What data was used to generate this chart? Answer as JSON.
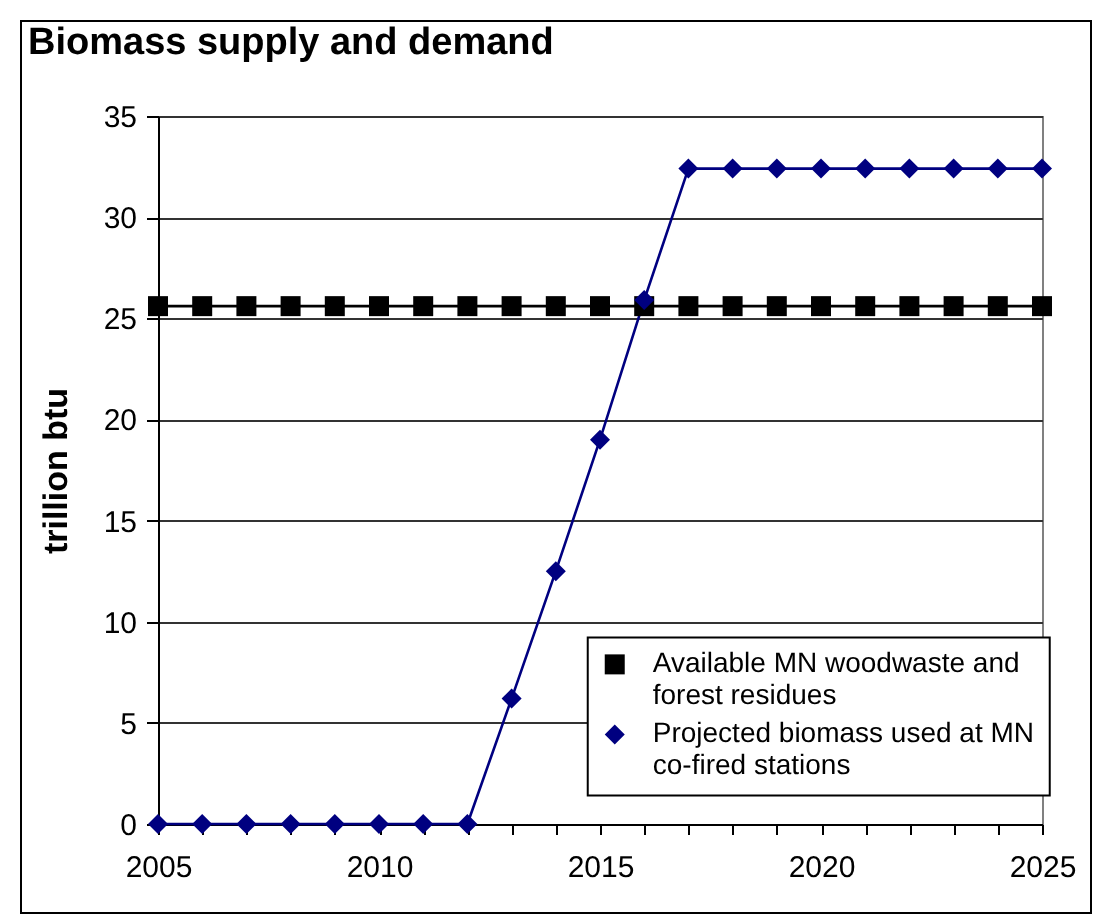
{
  "chart_data": {
    "type": "line",
    "title": "Biomass supply and demand",
    "ylabel": "trillion btu",
    "x": [
      2005,
      2006,
      2007,
      2008,
      2009,
      2010,
      2011,
      2012,
      2013,
      2014,
      2015,
      2016,
      2017,
      2018,
      2019,
      2020,
      2021,
      2022,
      2023,
      2024,
      2025
    ],
    "series": [
      {
        "name": "Available MN woodwaste and forest residues",
        "color": "#000000",
        "marker": "square",
        "values": [
          25.6,
          25.6,
          25.6,
          25.6,
          25.6,
          25.6,
          25.6,
          25.6,
          25.6,
          25.6,
          25.6,
          25.6,
          25.6,
          25.6,
          25.6,
          25.6,
          25.6,
          25.6,
          25.6,
          25.6,
          25.6
        ]
      },
      {
        "name": "Projected biomass used at MN co-fired stations",
        "color": "#000080",
        "marker": "diamond",
        "values": [
          0,
          0,
          0,
          0,
          0,
          0,
          0,
          0,
          6.2,
          12.5,
          19,
          25.9,
          32.4,
          32.4,
          32.4,
          32.4,
          32.4,
          32.4,
          32.4,
          32.4,
          32.4
        ]
      }
    ],
    "xlim": [
      2005,
      2025
    ],
    "xticks": [
      2005,
      {
        "value": 2006,
        "label": null
      },
      {
        "value": 2007,
        "label": null
      },
      {
        "value": 2008,
        "label": null
      },
      {
        "value": 2009,
        "label": null
      },
      2010,
      {
        "value": 2011,
        "label": null
      },
      {
        "value": 2012,
        "label": null
      },
      {
        "value": 2013,
        "label": null
      },
      {
        "value": 2014,
        "label": null
      },
      2015,
      {
        "value": 2016,
        "label": null
      },
      {
        "value": 2017,
        "label": null
      },
      {
        "value": 2018,
        "label": null
      },
      {
        "value": 2019,
        "label": null
      },
      2020,
      {
        "value": 2021,
        "label": null
      },
      {
        "value": 2022,
        "label": null
      },
      {
        "value": 2023,
        "label": null
      },
      {
        "value": 2024,
        "label": null
      },
      2025
    ],
    "ylim": [
      0,
      35
    ],
    "yticks": [
      0,
      5,
      10,
      15,
      20,
      25,
      30,
      35
    ],
    "grid": "y",
    "legend": "bottom right",
    "line_style": "solid"
  }
}
